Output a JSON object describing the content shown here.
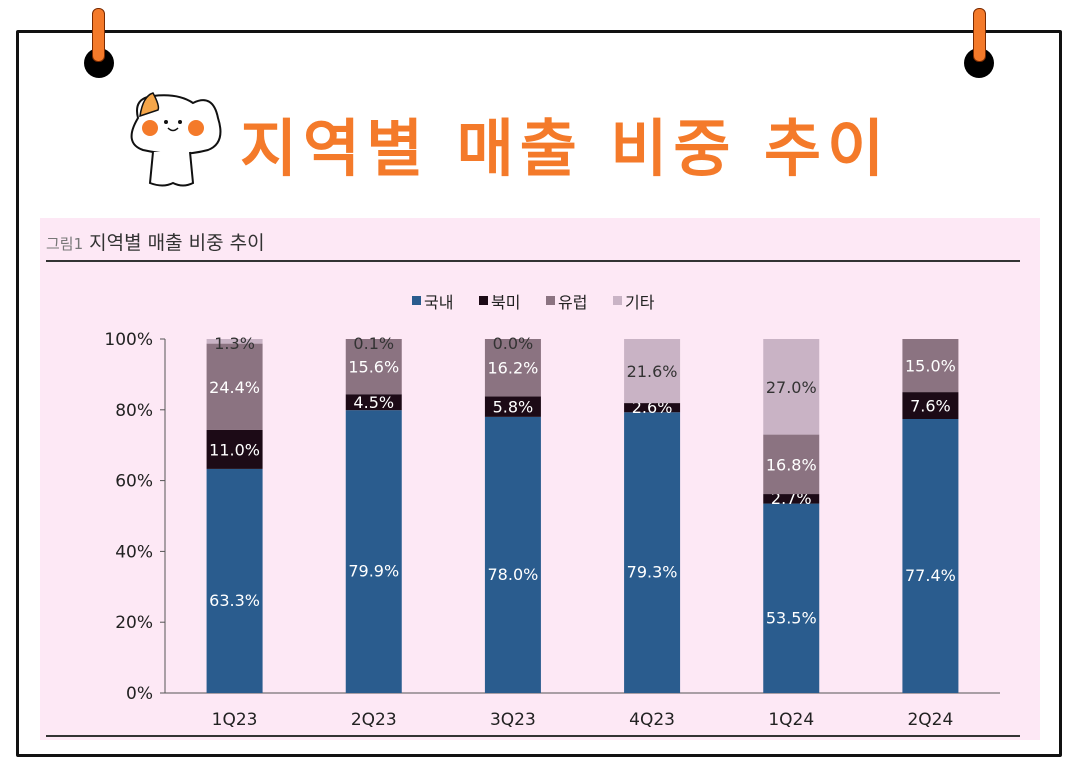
{
  "header": {
    "title": "지역별 매출 비중 추이"
  },
  "figure": {
    "label": "그림1",
    "title": "지역별 매출 비중 추이"
  },
  "chart_data": {
    "type": "bar",
    "stacked": true,
    "categories": [
      "1Q23",
      "2Q23",
      "3Q23",
      "4Q23",
      "1Q24",
      "2Q24"
    ],
    "series": [
      {
        "name": "국내",
        "color": "#2a5c8e",
        "values": [
          63.3,
          79.9,
          78.0,
          79.3,
          53.5,
          77.4
        ]
      },
      {
        "name": "북미",
        "color": "#1c0a16",
        "values": [
          11.0,
          4.5,
          5.8,
          2.6,
          2.7,
          7.6
        ]
      },
      {
        "name": "유럽",
        "color": "#8b7381",
        "values": [
          24.4,
          15.6,
          16.2,
          null,
          16.8,
          15.0
        ]
      },
      {
        "name": "기타",
        "color": "#c9b3c5",
        "values": [
          1.3,
          0.1,
          0.0,
          21.6,
          27.0,
          null
        ]
      }
    ],
    "yticks": [
      "0%",
      "20%",
      "40%",
      "60%",
      "80%",
      "100%"
    ],
    "ylim": [
      0,
      100
    ],
    "legend": "top",
    "grid": false
  }
}
